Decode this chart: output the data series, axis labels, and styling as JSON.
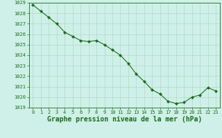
{
  "x": [
    0,
    1,
    2,
    3,
    4,
    5,
    6,
    7,
    8,
    9,
    10,
    11,
    12,
    13,
    14,
    15,
    16,
    17,
    18,
    19,
    20,
    21,
    22,
    23
  ],
  "y": [
    1028.8,
    1028.2,
    1027.6,
    1027.0,
    1026.2,
    1025.8,
    1025.4,
    1025.3,
    1025.4,
    1025.0,
    1024.5,
    1024.0,
    1023.2,
    1022.2,
    1021.5,
    1020.7,
    1020.3,
    1019.6,
    1019.4,
    1019.5,
    1020.0,
    1020.2,
    1020.9,
    1020.6
  ],
  "ylim": [
    1019,
    1029
  ],
  "xlim_min": -0.5,
  "xlim_max": 23.5,
  "yticks": [
    1019,
    1020,
    1021,
    1022,
    1023,
    1024,
    1025,
    1026,
    1027,
    1028,
    1029
  ],
  "xticks": [
    0,
    1,
    2,
    3,
    4,
    5,
    6,
    7,
    8,
    9,
    10,
    11,
    12,
    13,
    14,
    15,
    16,
    17,
    18,
    19,
    20,
    21,
    22,
    23
  ],
  "xlabel": "Graphe pression niveau de la mer (hPa)",
  "line_color": "#1a6b1a",
  "marker": "D",
  "marker_size": 2.2,
  "bg_color": "#cff0e8",
  "grid_color": "#b0d8c8",
  "plot_bg": "#cff0e8",
  "tick_fontsize": 5.0,
  "xlabel_fontsize": 7.0,
  "linewidth": 0.8
}
